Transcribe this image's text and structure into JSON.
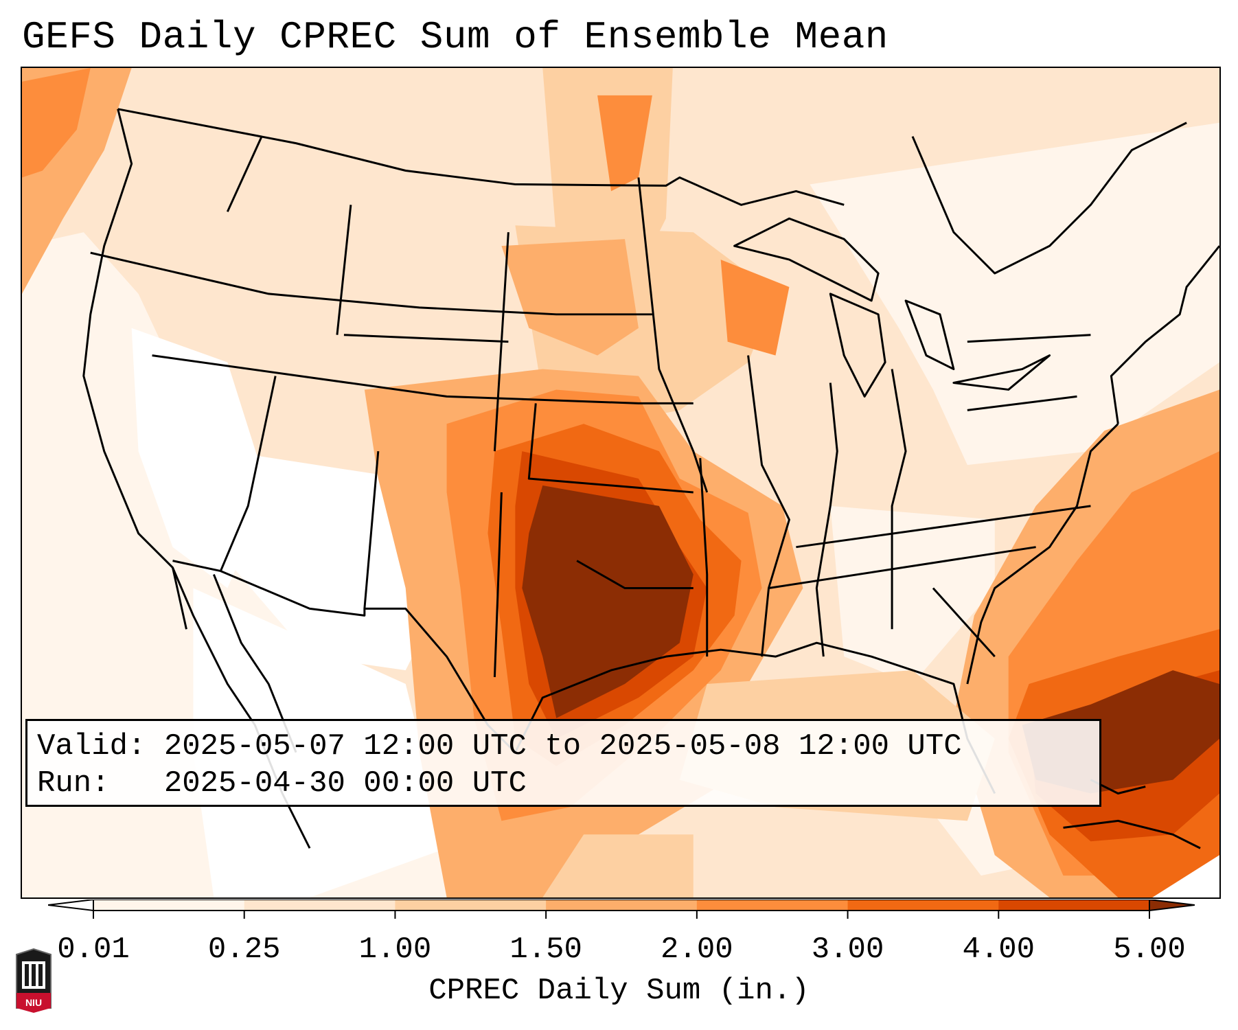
{
  "title": "GEFS Daily CPREC Sum of Ensemble Mean",
  "info": {
    "valid_label": "Valid:",
    "valid_value": "2025-05-07 12:00 UTC to 2025-05-08 12:00 UTC",
    "run_label": "Run:",
    "run_value": "2025-04-30 00:00 UTC"
  },
  "colorbar": {
    "label": "CPREC Daily Sum (in.)",
    "ticks": [
      "0.01",
      "0.25",
      "1.00",
      "1.50",
      "2.00",
      "3.00",
      "4.00",
      "5.00"
    ],
    "colors": [
      "#fff5eb",
      "#fee6ce",
      "#fdd0a2",
      "#fdae6b",
      "#fd8d3c",
      "#f16913",
      "#d94801",
      "#8c2d04"
    ],
    "extend": "both"
  },
  "logo": {
    "text": "NIU",
    "color": "#c8102e"
  },
  "colors": {
    "lightest": "#fff5eb",
    "light": "#fee6ce",
    "light_mid": "#fdd0a2",
    "mid": "#fdae6b",
    "mid_orange": "#fd8d3c",
    "orange": "#f16913",
    "dark_orange": "#d94801",
    "max": "#8c2d04"
  }
}
